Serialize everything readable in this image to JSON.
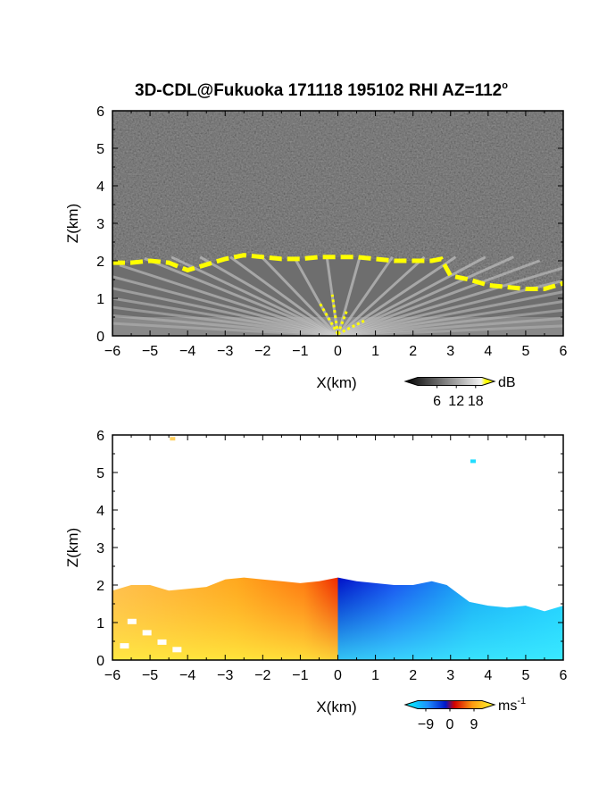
{
  "title": "3D-CDL@Fukuoka 171118 195102 RHI AZ=112",
  "title_sup": "o",
  "chart_data": [
    {
      "type": "heatmap",
      "panel": "top",
      "quantity": "backscatter",
      "xlabel": "X(km)",
      "ylabel": "Z(km)",
      "xlim": [
        -6,
        6
      ],
      "ylim": [
        0,
        6
      ],
      "xticks": [
        "-6",
        "-5",
        "-4",
        "-3",
        "-2",
        "-1",
        "0",
        "1",
        "2",
        "3",
        "4",
        "5",
        "6"
      ],
      "yticks": [
        "0",
        "1",
        "2",
        "3",
        "4",
        "5",
        "6"
      ],
      "colormap": "grayscale",
      "saturation_color": "#ffff00",
      "colorbar": {
        "unit": "dB",
        "ticks": [
          "6",
          "12",
          "18"
        ],
        "range": [
          0,
          20
        ]
      },
      "cloud_base_km": [
        {
          "x": -6.0,
          "z": 1.95
        },
        {
          "x": -5.5,
          "z": 1.95
        },
        {
          "x": -5.0,
          "z": 2.0
        },
        {
          "x": -4.5,
          "z": 1.95
        },
        {
          "x": -4.0,
          "z": 1.75
        },
        {
          "x": -3.5,
          "z": 1.9
        },
        {
          "x": -3.0,
          "z": 2.05
        },
        {
          "x": -2.5,
          "z": 2.15
        },
        {
          "x": -2.0,
          "z": 2.1
        },
        {
          "x": -1.5,
          "z": 2.05
        },
        {
          "x": -1.0,
          "z": 2.05
        },
        {
          "x": -0.5,
          "z": 2.1
        },
        {
          "x": 0.0,
          "z": 2.1
        },
        {
          "x": 0.5,
          "z": 2.1
        },
        {
          "x": 1.0,
          "z": 2.05
        },
        {
          "x": 1.5,
          "z": 2.0
        },
        {
          "x": 2.0,
          "z": 2.0
        },
        {
          "x": 2.5,
          "z": 2.0
        },
        {
          "x": 2.75,
          "z": 2.05
        },
        {
          "x": 3.0,
          "z": 1.6
        },
        {
          "x": 3.5,
          "z": 1.5
        },
        {
          "x": 4.0,
          "z": 1.35
        },
        {
          "x": 4.5,
          "z": 1.3
        },
        {
          "x": 5.0,
          "z": 1.25
        },
        {
          "x": 5.5,
          "z": 1.25
        },
        {
          "x": 6.0,
          "z": 1.4
        }
      ]
    },
    {
      "type": "heatmap",
      "panel": "bottom",
      "quantity": "radial velocity",
      "xlabel": "X(km)",
      "ylabel": "Z(km)",
      "xlim": [
        -6,
        6
      ],
      "ylim": [
        0,
        6
      ],
      "xticks": [
        "-6",
        "-5",
        "-4",
        "-3",
        "-2",
        "-1",
        "0",
        "1",
        "2",
        "3",
        "4",
        "5",
        "6"
      ],
      "yticks": [
        "0",
        "1",
        "2",
        "3",
        "4",
        "5",
        "6"
      ],
      "colormap": "blue-red-yellow",
      "colorbar": {
        "unit": "ms",
        "unit_sup": "-1",
        "ticks": [
          "−9",
          "0",
          "9"
        ],
        "range": [
          -12,
          12
        ]
      },
      "echo_top_km": [
        {
          "x": -6.0,
          "z": 1.85
        },
        {
          "x": -5.5,
          "z": 2.0
        },
        {
          "x": -5.0,
          "z": 2.0
        },
        {
          "x": -4.5,
          "z": 1.85
        },
        {
          "x": -4.0,
          "z": 1.9
        },
        {
          "x": -3.5,
          "z": 1.95
        },
        {
          "x": -3.0,
          "z": 2.15
        },
        {
          "x": -2.5,
          "z": 2.2
        },
        {
          "x": -2.0,
          "z": 2.15
        },
        {
          "x": -1.5,
          "z": 2.1
        },
        {
          "x": -1.0,
          "z": 2.05
        },
        {
          "x": -0.5,
          "z": 2.1
        },
        {
          "x": 0.0,
          "z": 2.2
        },
        {
          "x": 0.5,
          "z": 2.1
        },
        {
          "x": 1.0,
          "z": 2.05
        },
        {
          "x": 1.5,
          "z": 2.0
        },
        {
          "x": 2.0,
          "z": 2.0
        },
        {
          "x": 2.5,
          "z": 2.1
        },
        {
          "x": 2.9,
          "z": 2.0
        },
        {
          "x": 3.5,
          "z": 1.55
        },
        {
          "x": 4.0,
          "z": 1.45
        },
        {
          "x": 4.5,
          "z": 1.4
        },
        {
          "x": 5.0,
          "z": 1.45
        },
        {
          "x": 5.5,
          "z": 1.3
        },
        {
          "x": 6.0,
          "z": 1.45
        }
      ],
      "velocity_sign": {
        "x_lt_0": "positive",
        "x_gt_0": "negative"
      },
      "isolated_echoes": [
        {
          "x": -4.4,
          "z": 5.9,
          "color": "#ffd060"
        },
        {
          "x": 3.6,
          "z": 5.3,
          "color": "#22ddff"
        }
      ]
    }
  ]
}
